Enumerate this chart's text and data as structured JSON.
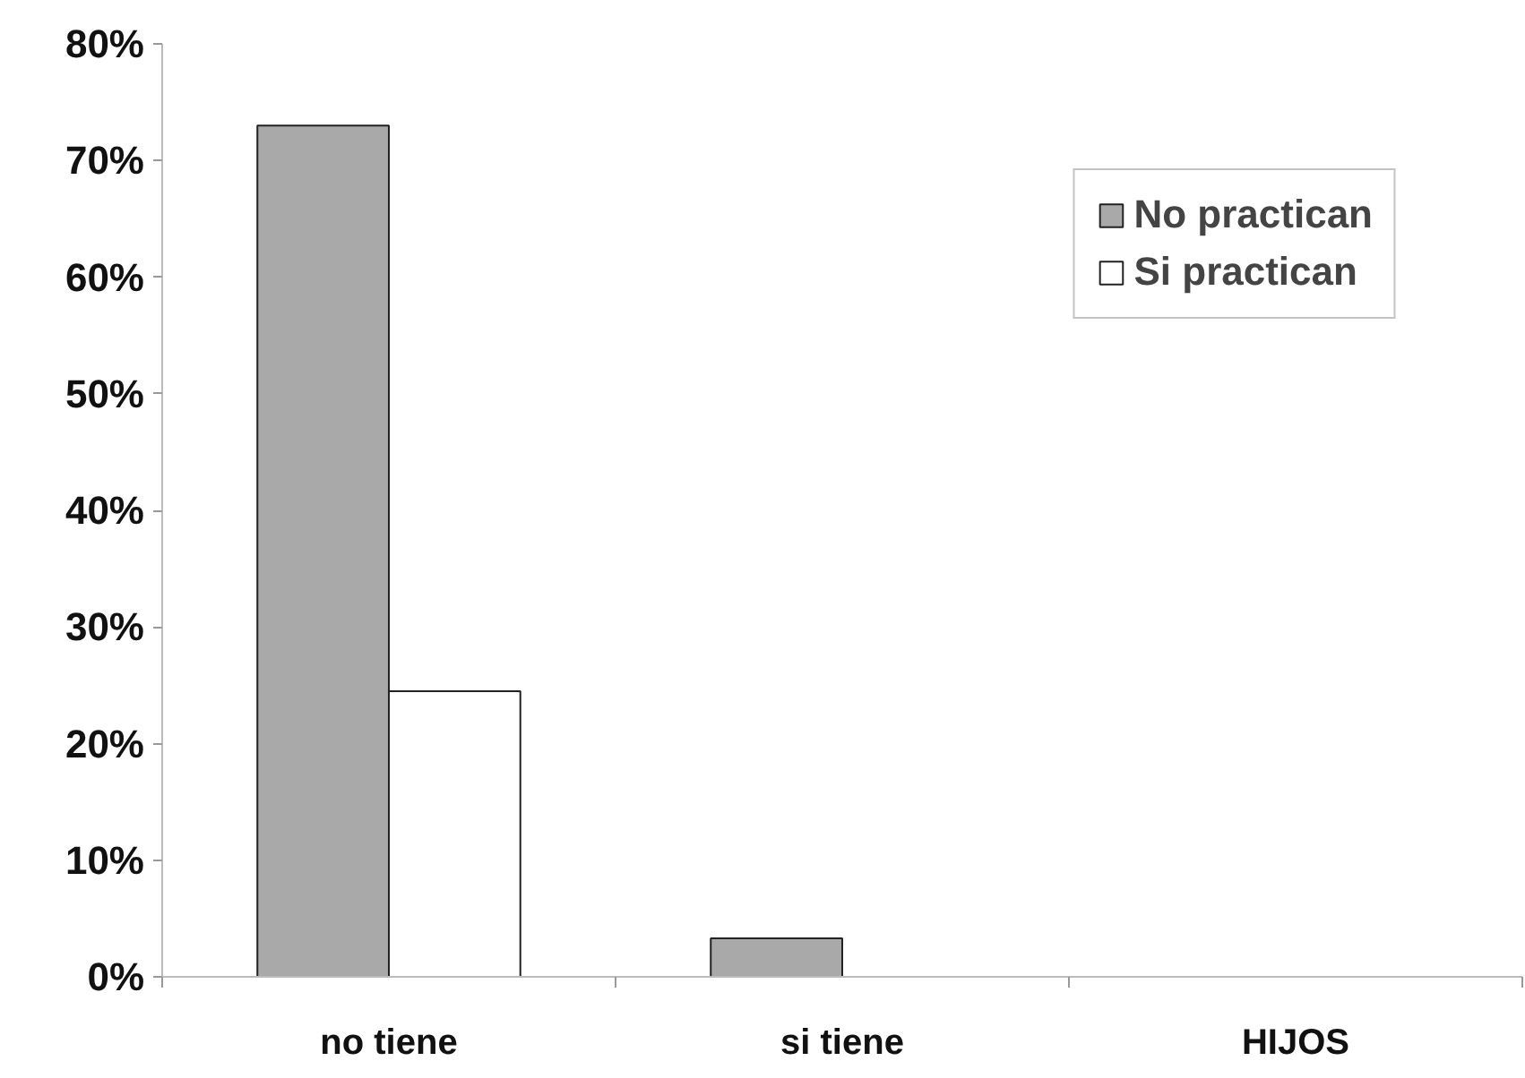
{
  "chart_data": {
    "type": "bar",
    "xlabel": "HIJOS",
    "categories": [
      "no tiene",
      "si tiene",
      null
    ],
    "series": [
      {
        "name": "No practican",
        "color": "#a9a9a9",
        "values": [
          73,
          3.3,
          null
        ]
      },
      {
        "name": "Si practican",
        "color": "#ffffff",
        "values": [
          24.5,
          null,
          null
        ]
      }
    ],
    "ylim": [
      0,
      80
    ],
    "yticks": [
      {
        "value": 0,
        "label": "0%"
      },
      {
        "value": 10,
        "label": "10%"
      },
      {
        "value": 20,
        "label": "20%"
      },
      {
        "value": 30,
        "label": "30%"
      },
      {
        "value": 40,
        "label": "40%"
      },
      {
        "value": 50,
        "label": "50%"
      },
      {
        "value": 60,
        "label": "60%"
      },
      {
        "value": 70,
        "label": "70%"
      },
      {
        "value": 80,
        "label": "80%"
      }
    ],
    "grid": false,
    "legend": "top right"
  }
}
